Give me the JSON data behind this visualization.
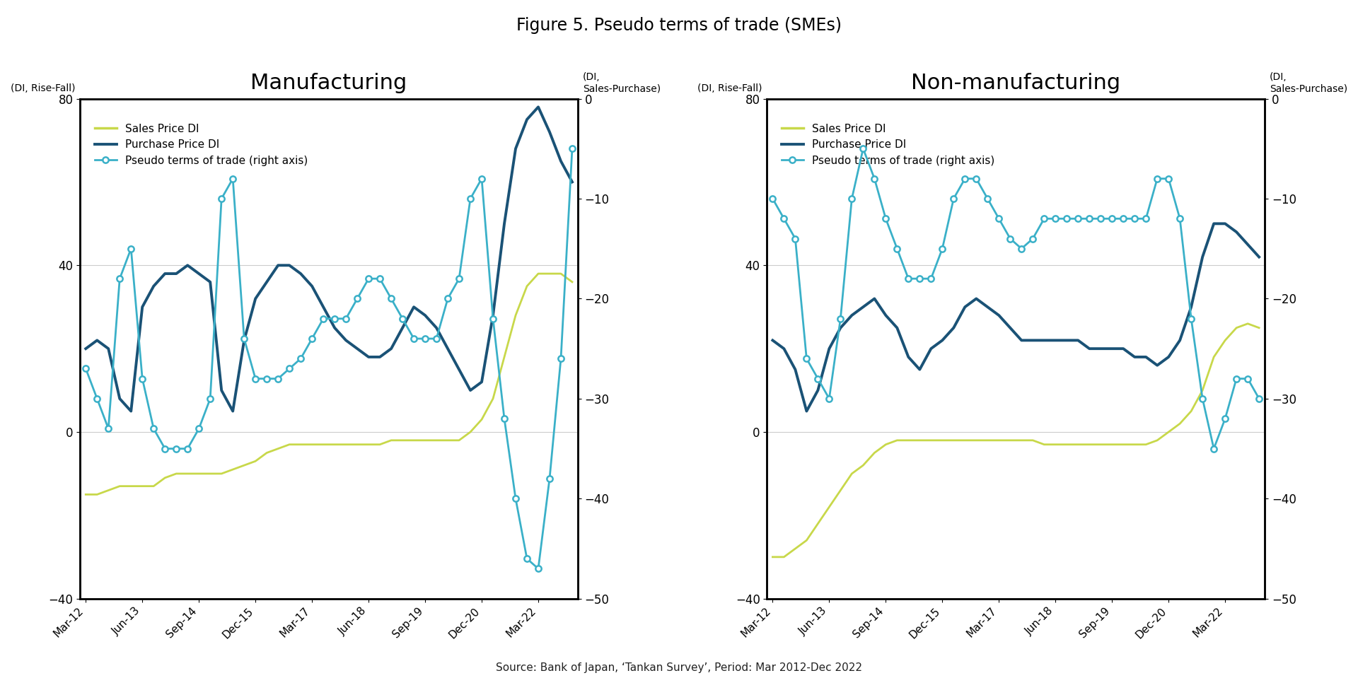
{
  "title": "Figure 5. Pseudo terms of trade (SMEs)",
  "source_text": "Source: Bank of Japan, ‘Tankan Survey’, Period: Mar 2012-Dec 2022",
  "left_title": "Manufacturing",
  "right_title": "Non-manufacturing",
  "legend": [
    "Sales Price DI",
    "Purchase Price DI",
    "Pseudo terms of trade (right axis)"
  ],
  "x_labels": [
    "Mar-12",
    "Jun-13",
    "Sep-14",
    "Dec-15",
    "Mar-17",
    "Jun-18",
    "Sep-19",
    "Dec-20",
    "Mar-22"
  ],
  "tick_indices": [
    0,
    5,
    10,
    15,
    20,
    25,
    30,
    35,
    40
  ],
  "ylim_left": [
    -40,
    80
  ],
  "ylim_right": [
    -50,
    0
  ],
  "yticks_left": [
    -40,
    0,
    40,
    80
  ],
  "yticks_right": [
    -50,
    -40,
    -30,
    -20,
    -10,
    0
  ],
  "colors": {
    "sales": "#c8d84a",
    "purchase": "#1a5276",
    "pseudo": "#3ab0c8"
  },
  "mfg_sales": [
    -15,
    -15,
    -14,
    -13,
    -13,
    -13,
    -13,
    -11,
    -10,
    -10,
    -10,
    -10,
    -10,
    -9,
    -8,
    -7,
    -5,
    -4,
    -3,
    -3,
    -3,
    -3,
    -3,
    -3,
    -3,
    -3,
    -3,
    -2,
    -2,
    -2,
    -2,
    -2,
    -2,
    -2,
    0,
    3,
    8,
    18,
    28,
    35,
    38,
    38,
    38,
    36
  ],
  "mfg_purchase": [
    20,
    22,
    20,
    8,
    5,
    30,
    35,
    38,
    38,
    40,
    38,
    36,
    10,
    5,
    22,
    32,
    36,
    40,
    40,
    38,
    35,
    30,
    25,
    22,
    20,
    18,
    18,
    20,
    25,
    30,
    28,
    25,
    20,
    15,
    10,
    12,
    28,
    50,
    68,
    75,
    78,
    72,
    65,
    60
  ],
  "mfg_pseudo": [
    -27,
    -30,
    -33,
    -18,
    -15,
    -28,
    -33,
    -35,
    -35,
    -35,
    -33,
    -30,
    -10,
    -8,
    -24,
    -28,
    -28,
    -28,
    -27,
    -26,
    -24,
    -22,
    -22,
    -22,
    -20,
    -18,
    -18,
    -20,
    -22,
    -24,
    -24,
    -24,
    -20,
    -18,
    -10,
    -8,
    -22,
    -32,
    -40,
    -46,
    -47,
    -38,
    -26,
    -5
  ],
  "nmfg_sales": [
    -30,
    -30,
    -28,
    -26,
    -22,
    -18,
    -14,
    -10,
    -8,
    -5,
    -3,
    -2,
    -2,
    -2,
    -2,
    -2,
    -2,
    -2,
    -2,
    -2,
    -2,
    -2,
    -2,
    -2,
    -3,
    -3,
    -3,
    -3,
    -3,
    -3,
    -3,
    -3,
    -3,
    -3,
    -2,
    0,
    2,
    5,
    10,
    18,
    22,
    25,
    26,
    25
  ],
  "nmfg_purchase": [
    22,
    20,
    15,
    5,
    10,
    20,
    25,
    28,
    30,
    32,
    28,
    25,
    18,
    15,
    20,
    22,
    25,
    30,
    32,
    30,
    28,
    25,
    22,
    22,
    22,
    22,
    22,
    22,
    20,
    20,
    20,
    20,
    18,
    18,
    16,
    18,
    22,
    30,
    42,
    50,
    50,
    48,
    45,
    42
  ],
  "nmfg_pseudo": [
    -10,
    -12,
    -14,
    -26,
    -28,
    -30,
    -22,
    -10,
    -5,
    -8,
    -12,
    -15,
    -18,
    -18,
    -18,
    -15,
    -10,
    -8,
    -8,
    -10,
    -12,
    -14,
    -15,
    -14,
    -12,
    -12,
    -12,
    -12,
    -12,
    -12,
    -12,
    -12,
    -12,
    -12,
    -8,
    -8,
    -12,
    -22,
    -30,
    -35,
    -32,
    -28,
    -28,
    -30
  ]
}
